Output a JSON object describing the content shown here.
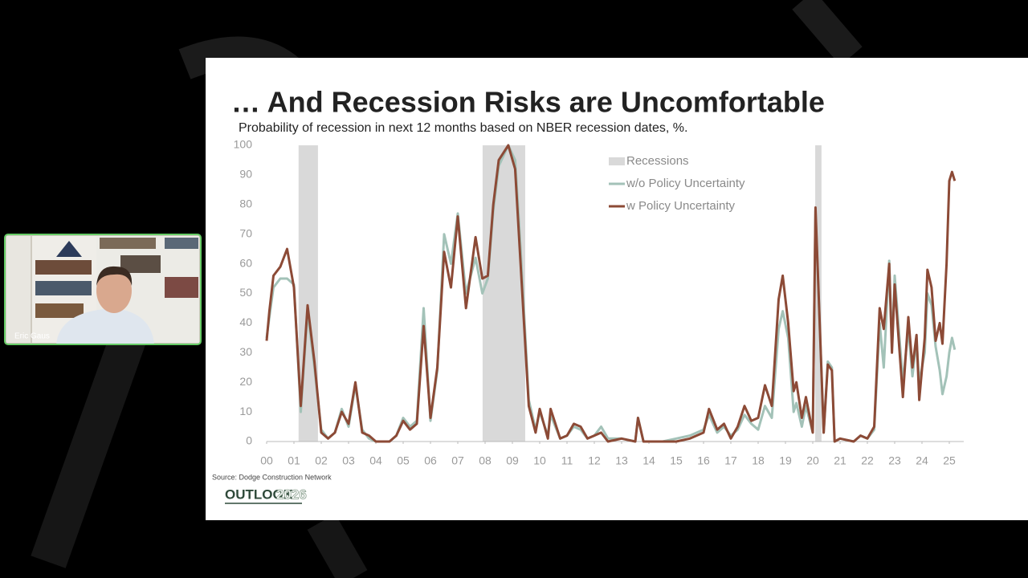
{
  "participant": "Eric Gaus",
  "slide": {
    "source": "Source: Dodge Construction Network",
    "logo": {
      "word": "OUTLOOK",
      "year": "2026"
    }
  },
  "chart_data": {
    "type": "line",
    "title": "… And Recession Risks are Uncomfortable",
    "subtitle": "Probability of recession in next 12 months based on NBER recession dates, %.",
    "xlim": [
      2000,
      2025.53
    ],
    "ylim": [
      0,
      100
    ],
    "yticks": [
      0,
      10,
      20,
      30,
      40,
      50,
      60,
      70,
      80,
      90,
      100
    ],
    "xticks": [
      {
        "value": 2000,
        "label": "00"
      },
      {
        "value": 2001,
        "label": "01"
      },
      {
        "value": 2002,
        "label": "02"
      },
      {
        "value": 2003,
        "label": "03"
      },
      {
        "value": 2004,
        "label": "04"
      },
      {
        "value": 2005,
        "label": "05"
      },
      {
        "value": 2006,
        "label": "06"
      },
      {
        "value": 2007,
        "label": "07"
      },
      {
        "value": 2008,
        "label": "08"
      },
      {
        "value": 2009,
        "label": "09"
      },
      {
        "value": 2010,
        "label": "10"
      },
      {
        "value": 2011,
        "label": "11"
      },
      {
        "value": 2012,
        "label": "12"
      },
      {
        "value": 2013,
        "label": "13"
      },
      {
        "value": 2014,
        "label": "14"
      },
      {
        "value": 2015,
        "label": "15"
      },
      {
        "value": 2016,
        "label": "16"
      },
      {
        "value": 2017,
        "label": "17"
      },
      {
        "value": 2018,
        "label": "18"
      },
      {
        "value": 2019,
        "label": "19"
      },
      {
        "value": 2020,
        "label": "20"
      },
      {
        "value": 2021,
        "label": "21"
      },
      {
        "value": 2022,
        "label": "22"
      },
      {
        "value": 2023,
        "label": "23"
      },
      {
        "value": 2024,
        "label": "24"
      },
      {
        "value": 2025,
        "label": "25"
      }
    ],
    "grid": false,
    "legend": "top-right",
    "recessions": {
      "name": "Recessions",
      "color": "#d9d9d9",
      "ranges": [
        [
          2001.17,
          2001.88
        ],
        [
          2007.91,
          2009.47
        ],
        [
          2020.09,
          2020.32
        ]
      ]
    },
    "x": [
      2000.0,
      2000.1,
      2000.25,
      2000.5,
      2000.75,
      2001.0,
      2001.25,
      2001.5,
      2001.75,
      2002.0,
      2002.25,
      2002.5,
      2002.75,
      2003.0,
      2003.25,
      2003.5,
      2003.75,
      2004.0,
      2004.5,
      2004.75,
      2005.0,
      2005.25,
      2005.5,
      2005.75,
      2006.0,
      2006.25,
      2006.5,
      2006.75,
      2007.0,
      2007.3,
      2007.65,
      2007.9,
      2008.1,
      2008.3,
      2008.5,
      2008.85,
      2009.1,
      2009.3,
      2009.6,
      2009.85,
      2010.0,
      2010.3,
      2010.4,
      2010.75,
      2011.0,
      2011.25,
      2011.5,
      2011.75,
      2012.0,
      2012.25,
      2012.5,
      2013.0,
      2013.5,
      2013.6,
      2013.8,
      2014.5,
      2015.0,
      2015.5,
      2016.0,
      2016.2,
      2016.5,
      2016.75,
      2017.0,
      2017.25,
      2017.5,
      2017.75,
      2018.0,
      2018.25,
      2018.5,
      2018.75,
      2018.9,
      2019.1,
      2019.3,
      2019.4,
      2019.6,
      2019.75,
      2020.0,
      2020.1,
      2020.4,
      2020.55,
      2020.7,
      2020.8,
      2021.0,
      2021.5,
      2021.75,
      2022.0,
      2022.25,
      2022.45,
      2022.6,
      2022.8,
      2022.9,
      2023.0,
      2023.3,
      2023.5,
      2023.65,
      2023.8,
      2023.9,
      2024.1,
      2024.2,
      2024.35,
      2024.5,
      2024.65,
      2024.75,
      2024.9,
      2025.0,
      2025.1,
      2025.2
    ],
    "series": [
      {
        "name": "w/o Policy Uncertainty",
        "color": "#a3c2b8",
        "values": [
          35,
          42,
          52,
          55,
          55,
          53,
          10,
          44,
          25,
          4,
          1,
          3,
          11,
          5,
          19,
          4,
          1,
          0,
          0,
          2,
          8,
          5,
          7,
          45,
          7,
          24,
          70,
          60,
          77,
          50,
          62,
          50,
          55,
          78,
          93,
          100,
          95,
          65,
          14,
          4,
          10,
          2,
          9,
          1,
          2,
          5,
          4,
          1,
          2,
          5,
          1,
          1,
          0,
          8,
          0,
          0,
          1,
          2,
          4,
          9,
          3,
          5,
          2,
          4,
          9,
          6,
          4,
          12,
          8,
          38,
          44,
          35,
          10,
          13,
          5,
          12,
          3,
          78,
          3,
          27,
          25,
          0,
          1,
          0,
          2,
          1,
          4,
          40,
          25,
          61,
          32,
          56,
          20,
          38,
          22,
          34,
          20,
          30,
          50,
          46,
          32,
          24,
          16,
          22,
          30,
          35,
          31
        ]
      },
      {
        "name": "w Policy Uncertainty",
        "color": "#8c4a36",
        "values": [
          34,
          44,
          56,
          59,
          65,
          52,
          12,
          46,
          27,
          3,
          1,
          3,
          10,
          6,
          20,
          3,
          2,
          0,
          0,
          2,
          7,
          4,
          6,
          39,
          8,
          25,
          64,
          52,
          76,
          45,
          69,
          55,
          56,
          80,
          95,
          100,
          92,
          60,
          12,
          3,
          11,
          1,
          11,
          1,
          2,
          6,
          5,
          1,
          2,
          3,
          0,
          1,
          0,
          8,
          0,
          0,
          0,
          1,
          3,
          11,
          4,
          6,
          1,
          5,
          12,
          7,
          8,
          19,
          12,
          48,
          56,
          40,
          17,
          20,
          8,
          15,
          3,
          79,
          3,
          26,
          24,
          0,
          1,
          0,
          2,
          1,
          5,
          45,
          38,
          60,
          30,
          53,
          15,
          42,
          25,
          36,
          14,
          35,
          58,
          52,
          34,
          40,
          33,
          60,
          88,
          91,
          88
        ]
      }
    ]
  }
}
